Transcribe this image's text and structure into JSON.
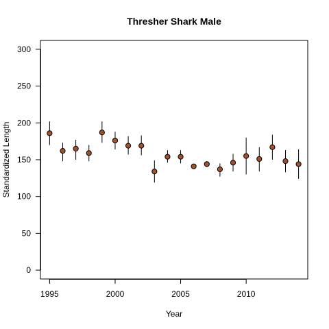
{
  "chart_data": {
    "type": "scatter",
    "title": "Thresher Shark Male",
    "xlabel": "Year",
    "ylabel": "Standardized Length",
    "xlim": [
      1994.3,
      2014.7
    ],
    "ylim": [
      -12,
      312
    ],
    "x_ticks": [
      1995,
      2000,
      2005,
      2010
    ],
    "y_ticks": [
      0,
      50,
      100,
      150,
      200,
      250,
      300
    ],
    "grid": false,
    "legend": "none",
    "point_color": "#a0522d",
    "series": [
      {
        "x": [
          1995,
          1996,
          1997,
          1998,
          1999,
          2000,
          2001,
          2002,
          2003,
          2004,
          2005,
          2006,
          2007,
          2008,
          2009,
          2010,
          2011,
          2012,
          2013,
          2014
        ],
        "y": [
          186,
          162,
          165,
          159,
          187,
          176,
          169,
          169,
          134,
          154,
          154,
          141,
          144,
          137,
          146,
          155,
          151,
          167,
          148,
          144
        ],
        "lower": [
          170,
          148,
          150,
          148,
          173,
          164,
          157,
          156,
          119,
          146,
          145,
          139,
          140,
          127,
          134,
          130,
          134,
          150,
          133,
          124
        ],
        "upper": [
          202,
          173,
          177,
          170,
          202,
          188,
          182,
          183,
          149,
          163,
          163,
          144,
          148,
          145,
          158,
          180,
          167,
          184,
          163,
          164
        ]
      }
    ]
  }
}
